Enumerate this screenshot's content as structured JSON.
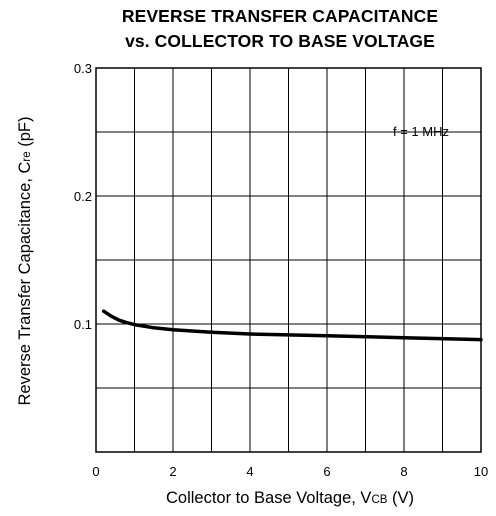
{
  "title_line1": "REVERSE TRANSFER CAPACITANCE",
  "title_line2": "vs. COLLECTOR TO BASE VOLTAGE",
  "annotation": "f = 1 MHz",
  "chart_data": {
    "type": "line",
    "title": "REVERSE TRANSFER CAPACITANCE vs. COLLECTOR TO BASE VOLTAGE",
    "xlabel": {
      "main": "Collector to Base Voltage, V",
      "sub": "CB",
      "unit": " (V)"
    },
    "ylabel": {
      "main": "Reverse Transfer Capacitance, C",
      "sub": "re",
      "unit": " (pF)"
    },
    "xlim": [
      0,
      10
    ],
    "ylim": [
      0,
      0.3
    ],
    "x_ticks": [
      {
        "value": 0,
        "label": "0"
      },
      {
        "value": 2,
        "label": "2"
      },
      {
        "value": 4,
        "label": "4"
      },
      {
        "value": 6,
        "label": "6"
      },
      {
        "value": 8,
        "label": "8"
      },
      {
        "value": 10,
        "label": "10"
      }
    ],
    "y_ticks": [
      {
        "value": 0.1,
        "label": "0.1"
      },
      {
        "value": 0.2,
        "label": "0.2"
      },
      {
        "value": 0.3,
        "label": "0.3"
      }
    ],
    "grid": true,
    "series": [
      {
        "color": "#000000",
        "x": [
          0.2,
          0.4,
          0.6,
          0.8,
          1.0,
          1.5,
          2.0,
          3.0,
          4.0,
          6.0,
          8.0,
          10.0
        ],
        "y": [
          0.11,
          0.106,
          0.103,
          0.101,
          0.0995,
          0.097,
          0.0955,
          0.0935,
          0.0922,
          0.0908,
          0.0893,
          0.0878
        ]
      }
    ]
  }
}
